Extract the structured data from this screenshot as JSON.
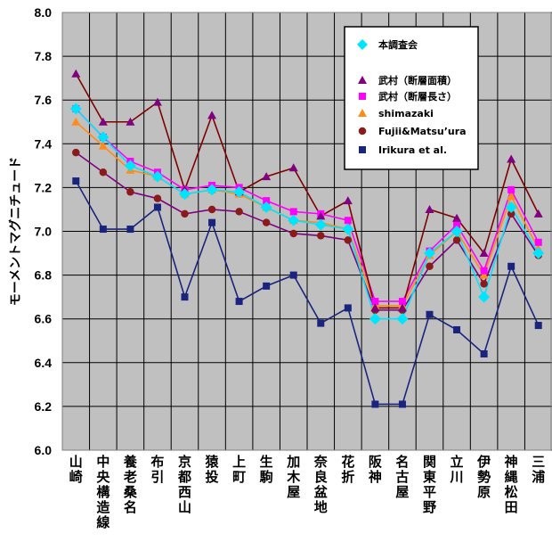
{
  "chart_data": {
    "type": "line",
    "title": "",
    "xlabel": "",
    "ylabel": "モーメントマグニチュード",
    "ylim": [
      6.0,
      8.0
    ],
    "yticks": [
      6.0,
      6.2,
      6.4,
      6.6,
      6.8,
      7.0,
      7.2,
      7.4,
      7.6,
      7.8,
      8.0
    ],
    "grid": true,
    "legend_position": "top-right",
    "plot_background": "#c0c0c0",
    "categories": [
      "山崎",
      "中央構造線",
      "養老桑名",
      "布引",
      "京都西山",
      "猿投",
      "上町",
      "生駒",
      "加木屋",
      "奈良盆地",
      "花折",
      "阪神",
      "名古屋",
      "関東平野",
      "立川",
      "伊勢原",
      "神縄松田",
      "三浦"
    ],
    "series": [
      {
        "name": "本調査会",
        "color": "#00e5ff",
        "line_color": "#00e5ff",
        "marker": "diamond",
        "values": [
          7.56,
          7.43,
          7.3,
          7.25,
          7.17,
          7.19,
          7.18,
          7.11,
          7.05,
          7.03,
          7.01,
          6.6,
          6.6,
          6.9,
          7.0,
          6.7,
          7.11,
          6.9
        ]
      },
      {
        "name": "武村（断層面積）",
        "color": "#800080",
        "line_color": "#800000",
        "marker": "triangle",
        "values": [
          7.72,
          7.5,
          7.5,
          7.59,
          7.19,
          7.53,
          7.18,
          7.25,
          7.29,
          7.07,
          7.14,
          6.65,
          6.65,
          7.1,
          7.06,
          6.9,
          7.33,
          7.08
        ]
      },
      {
        "name": "武村（断層長さ）",
        "color": "#ff00ff",
        "line_color": "#ff00ff",
        "marker": "square",
        "values": [
          7.56,
          7.43,
          7.32,
          7.27,
          7.19,
          7.21,
          7.2,
          7.14,
          7.09,
          7.08,
          7.05,
          6.68,
          6.68,
          6.91,
          7.03,
          6.82,
          7.19,
          6.95
        ]
      },
      {
        "name": "shimazaki",
        "color": "#ff8c1a",
        "line_color": "#ff8c1a",
        "marker": "triangle",
        "values": [
          7.5,
          7.39,
          7.28,
          7.25,
          7.17,
          7.19,
          7.17,
          7.11,
          7.05,
          7.04,
          7.01,
          6.66,
          6.66,
          6.89,
          7.0,
          6.8,
          7.16,
          6.92
        ]
      },
      {
        "name": "Fujii&Matsu’ura",
        "color": "#8b1a1a",
        "line_color": "#800080",
        "marker": "circle",
        "values": [
          7.36,
          7.27,
          7.18,
          7.15,
          7.08,
          7.1,
          7.09,
          7.04,
          6.99,
          6.98,
          6.96,
          6.64,
          6.64,
          6.84,
          6.96,
          6.76,
          7.08,
          6.89
        ]
      },
      {
        "name": "Irikura et al.",
        "color": "#1a237e",
        "line_color": "#1a237e",
        "marker": "square",
        "values": [
          7.23,
          7.01,
          7.01,
          7.11,
          6.7,
          7.04,
          6.68,
          6.75,
          6.8,
          6.58,
          6.65,
          6.21,
          6.21,
          6.62,
          6.55,
          6.44,
          6.84,
          6.57
        ]
      }
    ]
  }
}
